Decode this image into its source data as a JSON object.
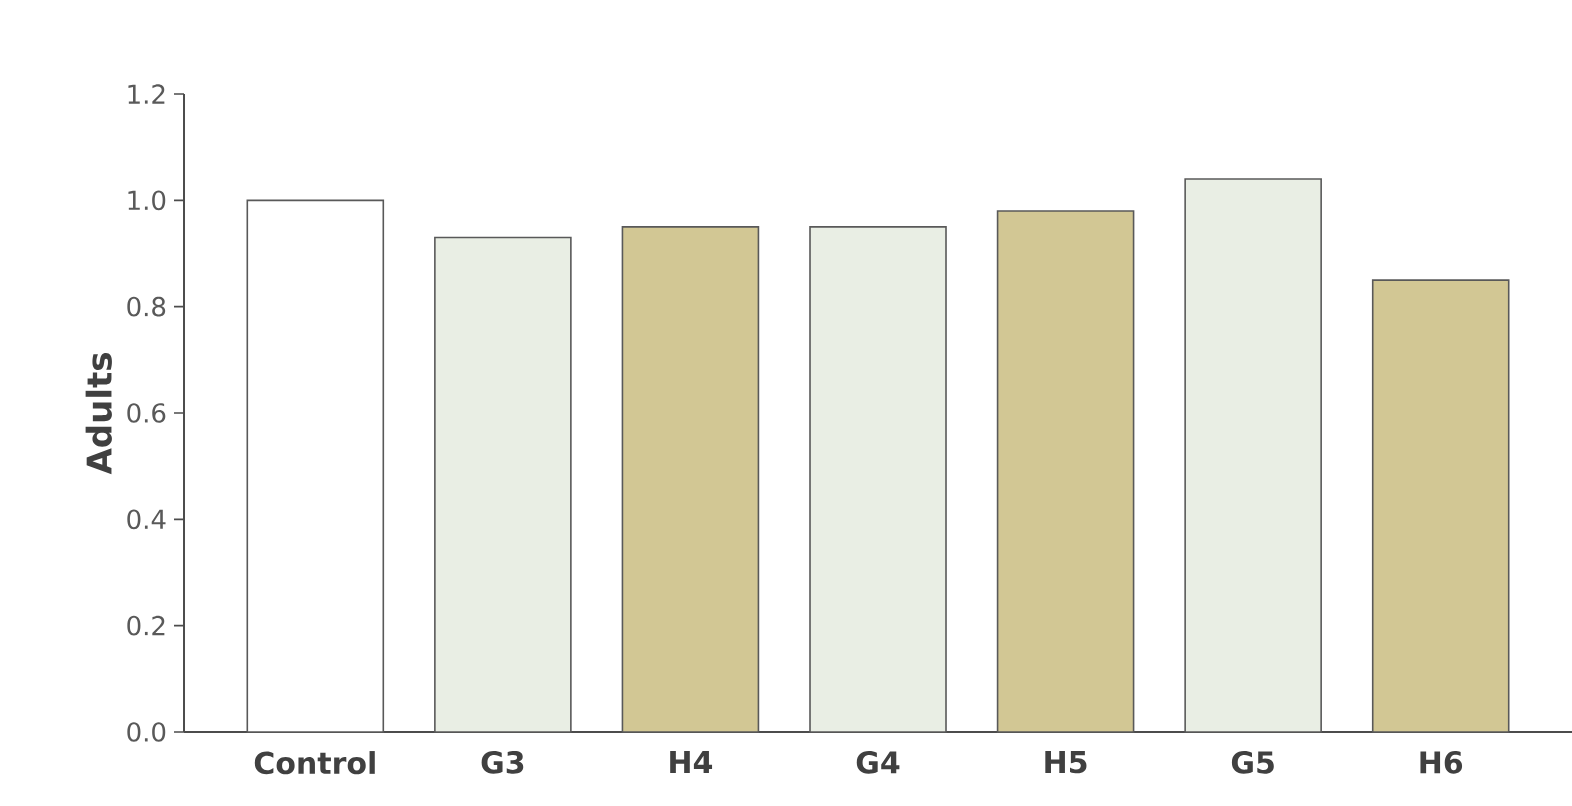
{
  "chart_data": {
    "type": "bar",
    "ylabel": "Adults",
    "categories": [
      "Control",
      "G3",
      "H4",
      "G4",
      "H5",
      "G5",
      "H6"
    ],
    "values": [
      1.0,
      0.93,
      0.95,
      0.95,
      0.98,
      1.04,
      0.85
    ],
    "colors": [
      "#ffffff",
      "#e9eee4",
      "#d2c794",
      "#e9eee4",
      "#d2c794",
      "#e9eee4",
      "#d2c794"
    ],
    "ylim": [
      0,
      1.2
    ],
    "yticks": [
      {
        "value": 0,
        "label": "0.0"
      },
      0.2,
      0.4,
      0.6,
      0.8,
      {
        "value": 1,
        "label": "1.0"
      },
      1.2
    ],
    "grid": false
  }
}
